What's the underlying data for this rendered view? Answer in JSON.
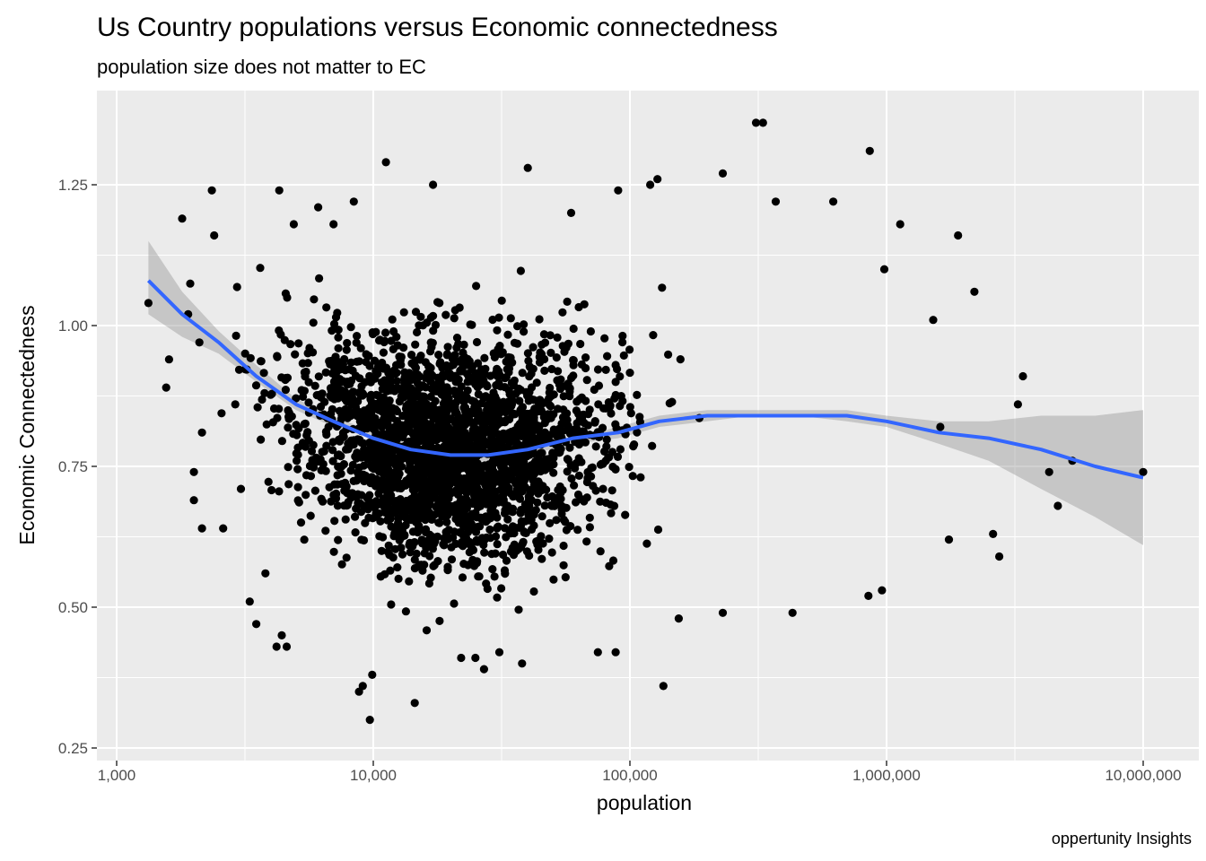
{
  "chart_data": {
    "type": "scatter",
    "title": "Us Country populations versus Economic connectedness",
    "subtitle": "population size does not matter to EC",
    "caption": "oppertunity Insights",
    "xlabel": "population",
    "ylabel": "Economic Connectedness",
    "x_scale": "log10",
    "xlim": [
      1000,
      12000000
    ],
    "ylim": [
      0.25,
      1.39
    ],
    "x_ticks": [
      {
        "value": 1000,
        "label": "1,000"
      },
      {
        "value": 10000,
        "label": "10,000"
      },
      {
        "value": 100000,
        "label": "100,000"
      },
      {
        "value": 1000000,
        "label": "1,000,000"
      },
      {
        "value": 10000000,
        "label": "10,000,000"
      }
    ],
    "y_ticks": [
      {
        "value": 0.25,
        "label": "0.25"
      },
      {
        "value": 0.5,
        "label": "0.50"
      },
      {
        "value": 0.75,
        "label": "0.75"
      },
      {
        "value": 1.0,
        "label": "1.00"
      },
      {
        "value": 1.25,
        "label": "1.25"
      }
    ],
    "grid": true,
    "colors": {
      "panel": "#ebebeb",
      "grid_major": "#ffffff",
      "point": "#000000",
      "smooth_line": "#3366ff",
      "ribbon": "#999999"
    },
    "series": [
      {
        "type": "scatter",
        "points": [
          [
            1330,
            1.04
          ],
          [
            1600,
            0.94
          ],
          [
            1560,
            0.89
          ],
          [
            1800,
            1.19
          ],
          [
            1900,
            1.02
          ],
          [
            2100,
            0.97
          ],
          [
            2000,
            0.74
          ],
          [
            2000,
            0.69
          ],
          [
            2150,
            0.81
          ],
          [
            2150,
            0.64
          ],
          [
            2350,
            1.24
          ],
          [
            2400,
            1.16
          ],
          [
            2600,
            0.64
          ],
          [
            2900,
            0.86
          ],
          [
            3050,
            0.71
          ],
          [
            3300,
            0.51
          ],
          [
            3500,
            0.47
          ],
          [
            3800,
            0.56
          ],
          [
            4200,
            0.43
          ],
          [
            4400,
            0.45
          ],
          [
            4600,
            0.43
          ],
          [
            4300,
            1.24
          ],
          [
            4900,
            1.18
          ],
          [
            6100,
            1.21
          ],
          [
            7000,
            1.18
          ],
          [
            8400,
            1.22
          ],
          [
            8800,
            0.35
          ],
          [
            9100,
            0.36
          ],
          [
            9700,
            0.3
          ],
          [
            9900,
            0.38
          ],
          [
            11200,
            1.29
          ],
          [
            14500,
            0.33
          ],
          [
            17100,
            1.25
          ],
          [
            22000,
            0.41
          ],
          [
            25000,
            0.41
          ],
          [
            27000,
            0.39
          ],
          [
            31000,
            0.42
          ],
          [
            38000,
            0.4
          ],
          [
            40000,
            1.28
          ],
          [
            59000,
            1.2
          ],
          [
            75000,
            0.42
          ],
          [
            90000,
            1.24
          ],
          [
            88000,
            0.42
          ],
          [
            120000,
            1.25
          ],
          [
            128000,
            1.26
          ],
          [
            135000,
            0.36
          ],
          [
            155000,
            0.48
          ],
          [
            230000,
            1.27
          ],
          [
            230000,
            0.49
          ],
          [
            310000,
            1.36
          ],
          [
            330000,
            1.36
          ],
          [
            370000,
            1.22
          ],
          [
            430000,
            0.49
          ],
          [
            620000,
            1.22
          ],
          [
            860000,
            1.31
          ],
          [
            850000,
            0.52
          ],
          [
            960000,
            0.53
          ],
          [
            980000,
            1.1
          ],
          [
            1130000,
            1.18
          ],
          [
            1900000,
            1.16
          ],
          [
            2200000,
            1.06
          ],
          [
            1520000,
            1.01
          ],
          [
            1620000,
            0.82
          ],
          [
            1750000,
            0.62
          ],
          [
            2600000,
            0.63
          ],
          [
            2750000,
            0.59
          ],
          [
            3250000,
            0.86
          ],
          [
            3400000,
            0.91
          ],
          [
            4300000,
            0.74
          ],
          [
            4650000,
            0.68
          ],
          [
            5300000,
            0.76
          ],
          [
            10000000,
            0.74
          ]
        ]
      },
      {
        "type": "smooth",
        "name": "",
        "points": [
          [
            1330,
            1.08
          ],
          [
            1800,
            1.02
          ],
          [
            2500,
            0.97
          ],
          [
            3500,
            0.91
          ],
          [
            5000,
            0.86
          ],
          [
            7000,
            0.83
          ],
          [
            10000,
            0.8
          ],
          [
            14000,
            0.78
          ],
          [
            20000,
            0.77
          ],
          [
            28000,
            0.77
          ],
          [
            40000,
            0.78
          ],
          [
            60000,
            0.8
          ],
          [
            90000,
            0.81
          ],
          [
            130000,
            0.83
          ],
          [
            200000,
            0.84
          ],
          [
            300000,
            0.84
          ],
          [
            450000,
            0.84
          ],
          [
            700000,
            0.84
          ],
          [
            1000000,
            0.83
          ],
          [
            1600000,
            0.81
          ],
          [
            2500000,
            0.8
          ],
          [
            4000000,
            0.78
          ],
          [
            6500000,
            0.75
          ],
          [
            10000000,
            0.73
          ]
        ],
        "ci_upper": [
          [
            1330,
            1.15
          ],
          [
            1800,
            1.06
          ],
          [
            2500,
            0.99
          ],
          [
            3500,
            0.93
          ],
          [
            5000,
            0.87
          ],
          [
            7000,
            0.84
          ],
          [
            10000,
            0.81
          ],
          [
            14000,
            0.79
          ],
          [
            20000,
            0.78
          ],
          [
            28000,
            0.78
          ],
          [
            40000,
            0.79
          ],
          [
            60000,
            0.8
          ],
          [
            90000,
            0.82
          ],
          [
            130000,
            0.84
          ],
          [
            200000,
            0.85
          ],
          [
            300000,
            0.85
          ],
          [
            450000,
            0.85
          ],
          [
            700000,
            0.85
          ],
          [
            1000000,
            0.84
          ],
          [
            1600000,
            0.83
          ],
          [
            2500000,
            0.83
          ],
          [
            4000000,
            0.84
          ],
          [
            6500000,
            0.84
          ],
          [
            10000000,
            0.85
          ]
        ],
        "ci_lower": [
          [
            1330,
            1.02
          ],
          [
            1800,
            0.98
          ],
          [
            2500,
            0.95
          ],
          [
            3500,
            0.9
          ],
          [
            5000,
            0.85
          ],
          [
            7000,
            0.82
          ],
          [
            10000,
            0.8
          ],
          [
            14000,
            0.77
          ],
          [
            20000,
            0.76
          ],
          [
            28000,
            0.76
          ],
          [
            40000,
            0.77
          ],
          [
            60000,
            0.79
          ],
          [
            90000,
            0.8
          ],
          [
            130000,
            0.82
          ],
          [
            200000,
            0.83
          ],
          [
            300000,
            0.84
          ],
          [
            450000,
            0.84
          ],
          [
            700000,
            0.83
          ],
          [
            1000000,
            0.82
          ],
          [
            1600000,
            0.79
          ],
          [
            2500000,
            0.76
          ],
          [
            4000000,
            0.71
          ],
          [
            6500000,
            0.66
          ],
          [
            10000000,
            0.61
          ]
        ]
      }
    ],
    "dense_cloud": {
      "note": "",
      "rows": []
    }
  }
}
